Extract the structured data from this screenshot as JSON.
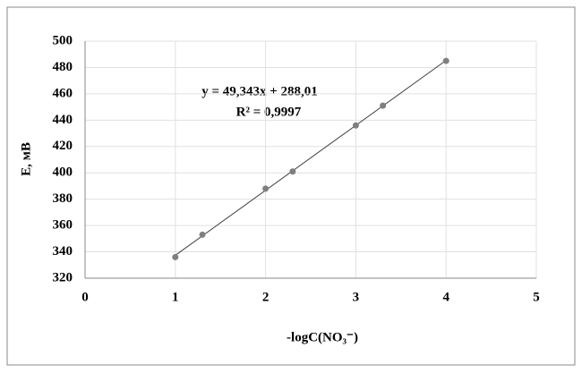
{
  "chart_data": {
    "type": "scatter",
    "x_label": "-logC(NO₃⁻)",
    "y_label": "E, мВ",
    "annotations": [
      "y = 49,343x + 288,01",
      "R² = 0,9997"
    ],
    "series": [
      {
        "x": [
          1,
          1.3,
          2,
          2.3,
          3,
          3.3,
          4
        ],
        "values": [
          336,
          353,
          388,
          401,
          436,
          451,
          485
        ],
        "color": "#7f7f7f"
      }
    ],
    "trendline": {
      "x": [
        1,
        4
      ],
      "values": [
        337.35,
        485.38
      ],
      "color": "#404040"
    },
    "xlim": [
      0,
      5
    ],
    "xticks": [
      0,
      1,
      2,
      3,
      4,
      5
    ],
    "ylim": [
      320,
      500
    ],
    "yticks": [
      320,
      340,
      360,
      380,
      400,
      420,
      440,
      460,
      480,
      500
    ],
    "grid": true
  }
}
